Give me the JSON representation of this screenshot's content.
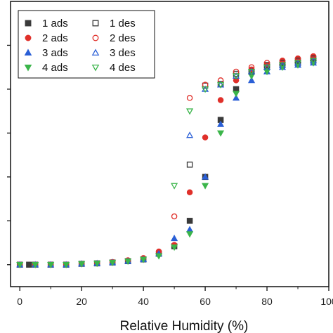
{
  "chart_data": {
    "type": "scatter",
    "title": "",
    "xlabel": "Relative Humidity (%)",
    "ylabel": "",
    "xlim": [
      -3,
      100
    ],
    "ylim": [
      -0.05,
      0.6
    ],
    "x_ticks": [
      "0",
      "20",
      "40",
      "60",
      "80",
      "100"
    ],
    "x_tick_values": [
      0,
      20,
      40,
      60,
      80,
      100
    ],
    "y_ticks_minor_values": [
      0,
      0.1,
      0.2,
      0.3,
      0.4,
      0.5
    ],
    "legend_position": "top-left",
    "grid": false,
    "series": [
      {
        "name": "1 ads",
        "color": "#3a3a3a",
        "marker": "square",
        "filled": true,
        "points": [
          [
            0,
            0
          ],
          [
            3,
            0
          ],
          [
            5,
            0
          ],
          [
            10,
            0
          ],
          [
            15,
            0
          ],
          [
            20,
            0.002
          ],
          [
            25,
            0.003
          ],
          [
            30,
            0.005
          ],
          [
            35,
            0.008
          ],
          [
            40,
            0.012
          ],
          [
            45,
            0.025
          ],
          [
            50,
            0.042
          ],
          [
            55,
            0.1
          ],
          [
            60,
            0.2
          ],
          [
            65,
            0.33
          ],
          [
            70,
            0.4
          ],
          [
            75,
            0.44
          ],
          [
            80,
            0.45
          ],
          [
            85,
            0.455
          ],
          [
            90,
            0.46
          ],
          [
            95,
            0.465
          ]
        ]
      },
      {
        "name": "1 des",
        "color": "#3a3a3a",
        "marker": "square",
        "filled": false,
        "points": [
          [
            55,
            0.228
          ],
          [
            60,
            0.408
          ],
          [
            65,
            0.412
          ],
          [
            70,
            0.435
          ],
          [
            75,
            0.44
          ],
          [
            80,
            0.455
          ],
          [
            85,
            0.46
          ],
          [
            90,
            0.465
          ],
          [
            95,
            0.47
          ]
        ]
      },
      {
        "name": "2 ads",
        "color": "#e0302a",
        "marker": "circle",
        "filled": true,
        "points": [
          [
            0,
            0
          ],
          [
            5,
            0
          ],
          [
            10,
            0
          ],
          [
            15,
            0
          ],
          [
            20,
            0.002
          ],
          [
            25,
            0.003
          ],
          [
            30,
            0.006
          ],
          [
            35,
            0.01
          ],
          [
            40,
            0.015
          ],
          [
            45,
            0.03
          ],
          [
            50,
            0.045
          ],
          [
            55,
            0.165
          ],
          [
            60,
            0.29
          ],
          [
            65,
            0.375
          ],
          [
            70,
            0.42
          ],
          [
            75,
            0.445
          ],
          [
            80,
            0.455
          ],
          [
            85,
            0.465
          ],
          [
            90,
            0.47
          ],
          [
            95,
            0.475
          ]
        ]
      },
      {
        "name": "2 des",
        "color": "#e0302a",
        "marker": "circle",
        "filled": false,
        "points": [
          [
            50,
            0.11
          ],
          [
            55,
            0.38
          ],
          [
            60,
            0.41
          ],
          [
            65,
            0.42
          ],
          [
            70,
            0.44
          ],
          [
            75,
            0.45
          ],
          [
            80,
            0.46
          ],
          [
            85,
            0.465
          ],
          [
            90,
            0.47
          ],
          [
            95,
            0.475
          ]
        ]
      },
      {
        "name": "3 ads",
        "color": "#2a5fd6",
        "marker": "triangle-up",
        "filled": true,
        "points": [
          [
            0,
            0
          ],
          [
            5,
            0
          ],
          [
            10,
            0
          ],
          [
            15,
            0
          ],
          [
            20,
            0.002
          ],
          [
            25,
            0.003
          ],
          [
            30,
            0.005
          ],
          [
            35,
            0.008
          ],
          [
            40,
            0.012
          ],
          [
            45,
            0.025
          ],
          [
            50,
            0.06
          ],
          [
            55,
            0.08
          ],
          [
            60,
            0.2
          ],
          [
            65,
            0.32
          ],
          [
            70,
            0.38
          ],
          [
            75,
            0.42
          ],
          [
            80,
            0.44
          ],
          [
            85,
            0.45
          ],
          [
            90,
            0.455
          ],
          [
            95,
            0.46
          ]
        ]
      },
      {
        "name": "3 des",
        "color": "#2a5fd6",
        "marker": "triangle-up",
        "filled": false,
        "points": [
          [
            55,
            0.295
          ],
          [
            60,
            0.4
          ],
          [
            65,
            0.41
          ],
          [
            70,
            0.43
          ],
          [
            75,
            0.44
          ],
          [
            80,
            0.45
          ],
          [
            85,
            0.455
          ],
          [
            90,
            0.46
          ],
          [
            95,
            0.465
          ]
        ]
      },
      {
        "name": "4 ads",
        "color": "#3bb54a",
        "marker": "triangle-down",
        "filled": true,
        "points": [
          [
            0,
            0
          ],
          [
            5,
            0
          ],
          [
            10,
            0
          ],
          [
            15,
            0
          ],
          [
            20,
            0.002
          ],
          [
            25,
            0.003
          ],
          [
            30,
            0.005
          ],
          [
            35,
            0.008
          ],
          [
            40,
            0.012
          ],
          [
            45,
            0.02
          ],
          [
            50,
            0.04
          ],
          [
            55,
            0.07
          ],
          [
            60,
            0.18
          ],
          [
            65,
            0.3
          ],
          [
            70,
            0.39
          ],
          [
            75,
            0.43
          ],
          [
            80,
            0.44
          ],
          [
            85,
            0.45
          ],
          [
            90,
            0.455
          ],
          [
            95,
            0.46
          ]
        ]
      },
      {
        "name": "4 des",
        "color": "#3bb54a",
        "marker": "triangle-down",
        "filled": false,
        "points": [
          [
            50,
            0.18
          ],
          [
            55,
            0.35
          ],
          [
            60,
            0.4
          ],
          [
            65,
            0.41
          ],
          [
            70,
            0.43
          ],
          [
            75,
            0.44
          ],
          [
            80,
            0.45
          ],
          [
            85,
            0.455
          ],
          [
            90,
            0.46
          ],
          [
            95,
            0.465
          ]
        ]
      }
    ]
  }
}
